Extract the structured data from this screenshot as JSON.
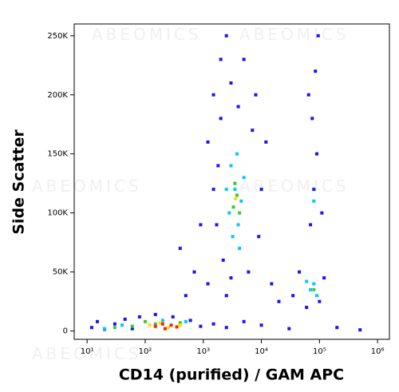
{
  "chart_data": {
    "type": "scatter",
    "watermark": "ABEOMICS",
    "xlabel": "CD14 (purified) / GAM APC",
    "ylabel": "Side Scatter",
    "xscale": "log",
    "xlim": [
      6,
      1600000
    ],
    "xticks": [
      {
        "value": 10,
        "label": "10¹"
      },
      {
        "value": 100,
        "label": "10²"
      },
      {
        "value": 1000,
        "label": "10³"
      },
      {
        "value": 10000,
        "label": "10⁴"
      },
      {
        "value": 100000,
        "label": "10⁵"
      },
      {
        "value": 1000000,
        "label": "10⁶"
      }
    ],
    "ylim": [
      -7000,
      260000
    ],
    "yticks": [
      0,
      {
        "value": 50000,
        "label": "50K"
      },
      {
        "value": 100000,
        "label": "100K"
      },
      {
        "value": 150000,
        "label": "150K"
      },
      {
        "value": 200000,
        "label": "200K"
      },
      {
        "value": 250000,
        "label": "250K"
      }
    ],
    "series": [
      {
        "color": "#1414ff",
        "x": [
          12,
          15,
          20,
          30,
          45,
          60,
          80,
          150,
          300,
          600,
          900,
          1500,
          2500,
          5000,
          10000,
          30000,
          200000,
          500000,
          500,
          700,
          400,
          900,
          1200,
          1500,
          1200,
          1500,
          2000,
          2500,
          3000,
          5000,
          8000,
          2000,
          1800,
          1700,
          2200,
          3000,
          6000,
          9000,
          10000,
          12000,
          7000,
          4000,
          2500,
          15000,
          20000,
          35000,
          45000,
          60000,
          120000,
          100000,
          70000,
          80000,
          90000,
          75000,
          85000,
          95000,
          65000,
          110000
        ],
        "y": [
          3000,
          8000,
          1500,
          6000,
          10000,
          2000,
          12000,
          14000,
          12000,
          9000,
          4000,
          6000,
          3000,
          8000,
          5000,
          2000,
          3000,
          1000,
          30000,
          50000,
          70000,
          90000,
          40000,
          120000,
          160000,
          200000,
          230000,
          250000,
          210000,
          230000,
          200000,
          180000,
          140000,
          90000,
          60000,
          45000,
          50000,
          80000,
          120000,
          160000,
          170000,
          190000,
          30000,
          40000,
          25000,
          30000,
          50000,
          20000,
          45000,
          25000,
          90000,
          120000,
          150000,
          180000,
          220000,
          250000,
          200000,
          100000
        ]
      },
      {
        "color": "#00c8ff",
        "x": [
          2800,
          3500,
          4000,
          3000,
          4500,
          3200,
          5000,
          2500,
          3800,
          4200,
          70000,
          80000,
          90000,
          60000,
          80000,
          200,
          500,
          40,
          20
        ],
        "y": [
          100000,
          120000,
          90000,
          140000,
          110000,
          80000,
          130000,
          120000,
          150000,
          70000,
          35000,
          40000,
          30000,
          42000,
          110000,
          9000,
          8000,
          5000,
          2000
        ]
      },
      {
        "color": "#33cc33",
        "x": [
          3300,
          3800,
          4200,
          3500,
          60,
          100,
          150,
          400,
          80000,
          30
        ],
        "y": [
          105000,
          115000,
          100000,
          125000,
          4000,
          8000,
          6000,
          7000,
          35000,
          3000
        ]
      },
      {
        "color": "#ffdd00",
        "x": [
          120,
          180,
          250,
          400,
          3600
        ],
        "y": [
          5000,
          7000,
          3000,
          5000,
          112000
        ]
      },
      {
        "color": "#ff2200",
        "x": [
          150,
          200,
          280,
          350,
          220
        ],
        "y": [
          4000,
          6000,
          5000,
          3500,
          2000
        ]
      }
    ]
  }
}
